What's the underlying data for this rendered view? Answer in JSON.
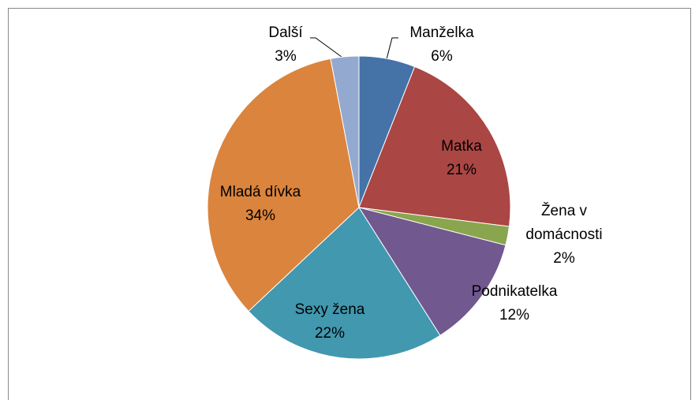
{
  "chart_data": {
    "type": "pie",
    "categories": [
      "Manželka",
      "Matka",
      "Žena v domácnosti",
      "Podnikatelka",
      "Sexy žena",
      "Mladá dívka",
      "Další"
    ],
    "values": [
      6,
      21,
      2,
      12,
      22,
      34,
      3
    ],
    "value_labels": [
      "6%",
      "21%",
      "2%",
      "12%",
      "22%",
      "34%",
      "3%"
    ],
    "colors": [
      "#4572a7",
      "#aa4643",
      "#89a54e",
      "#71588f",
      "#4198af",
      "#db843d",
      "#93a9cf"
    ]
  }
}
